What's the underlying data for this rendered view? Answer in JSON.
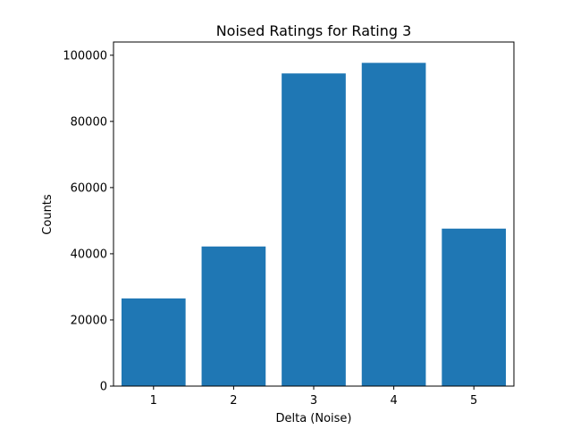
{
  "chart_data": {
    "type": "bar",
    "title": "Noised Ratings for Rating 3",
    "xlabel": "Delta (Noise)",
    "ylabel": "Counts",
    "categories": [
      "1",
      "2",
      "3",
      "4",
      "5"
    ],
    "values": [
      26500,
      42200,
      94500,
      97700,
      47600
    ],
    "ylim": [
      0,
      104000
    ],
    "yticks": [
      0,
      20000,
      40000,
      60000,
      80000,
      100000
    ],
    "ytick_labels": [
      "0",
      "20000",
      "40000",
      "60000",
      "80000",
      "100000"
    ],
    "grid": false,
    "bar_color": "#1f77b4"
  }
}
